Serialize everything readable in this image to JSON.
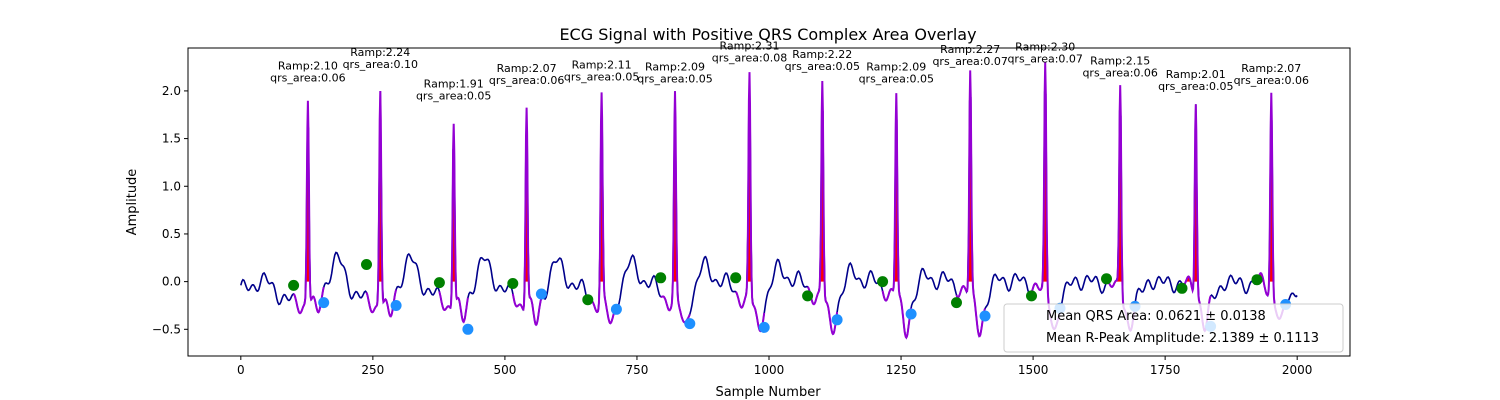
{
  "chart_data": {
    "type": "line",
    "title": "ECG Signal with Positive QRS Complex Area Overlay",
    "xlabel": "Sample Number",
    "ylabel": "Amplitude",
    "xlim": [
      -100,
      2100
    ],
    "ylim": [
      -0.78,
      2.45
    ],
    "xticks": [
      0,
      250,
      500,
      750,
      1000,
      1250,
      1500,
      1750,
      2000
    ],
    "yticks": [
      -0.5,
      0.0,
      0.5,
      1.0,
      1.5,
      2.0
    ],
    "xtick_labels": [
      "0",
      "250",
      "500",
      "750",
      "1000",
      "1250",
      "1500",
      "1750",
      "2000"
    ],
    "ytick_labels": [
      "−0.5",
      "0.0",
      "0.5",
      "1.0",
      "1.5",
      "2.0"
    ],
    "grid": false,
    "legend_position": "lower-right",
    "legend": [
      "Mean QRS Area: 0.0621 ± 0.0138",
      "Mean R-Peak Amplitude: 2.1389 ± 0.1113"
    ],
    "colors": {
      "signal": "#00008b",
      "qrs_segment": "#9400d3",
      "qrs_fill": "#ff0000",
      "onset_marker": "#008000",
      "offset_marker": "#1e90ff"
    },
    "beats": [
      {
        "r": 127,
        "ramp": 2.1,
        "area": 0.06,
        "onset": [
          100,
          -0.04
        ],
        "offset": [
          157,
          -0.22
        ],
        "ramp_label": "Ramp:2.10",
        "area_label": "qrs_area:0.06"
      },
      {
        "r": 264,
        "ramp": 2.24,
        "area": 0.1,
        "onset": [
          238,
          0.18
        ],
        "offset": [
          294,
          -0.25
        ],
        "ramp_label": "Ramp:2.24",
        "area_label": "qrs_area:0.10"
      },
      {
        "r": 403,
        "ramp": 1.91,
        "area": 0.05,
        "onset": [
          376,
          -0.01
        ],
        "offset": [
          430,
          -0.5
        ],
        "ramp_label": "Ramp:1.91",
        "area_label": "qrs_area:0.05"
      },
      {
        "r": 541,
        "ramp": 2.07,
        "area": 0.06,
        "onset": [
          515,
          -0.02
        ],
        "offset": [
          569,
          -0.13
        ],
        "ramp_label": "Ramp:2.07",
        "area_label": "qrs_area:0.06"
      },
      {
        "r": 683,
        "ramp": 2.11,
        "area": 0.05,
        "onset": [
          657,
          -0.19
        ],
        "offset": [
          711,
          -0.29
        ],
        "ramp_label": "Ramp:2.11",
        "area_label": "qrs_area:0.05"
      },
      {
        "r": 822,
        "ramp": 2.09,
        "area": 0.05,
        "onset": [
          795,
          0.04
        ],
        "offset": [
          850,
          -0.44
        ],
        "ramp_label": "Ramp:2.09",
        "area_label": "qrs_area:0.05"
      },
      {
        "r": 963,
        "ramp": 2.31,
        "area": 0.08,
        "onset": [
          937,
          0.04
        ],
        "offset": [
          991,
          -0.48
        ],
        "ramp_label": "Ramp:2.31",
        "area_label": "qrs_area:0.08"
      },
      {
        "r": 1101,
        "ramp": 2.22,
        "area": 0.05,
        "onset": [
          1073,
          -0.15
        ],
        "offset": [
          1129,
          -0.4
        ],
        "ramp_label": "Ramp:2.22",
        "area_label": "qrs_area:0.05"
      },
      {
        "r": 1241,
        "ramp": 2.09,
        "area": 0.05,
        "onset": [
          1215,
          0.0
        ],
        "offset": [
          1269,
          -0.34
        ],
        "ramp_label": "Ramp:2.09",
        "area_label": "qrs_area:0.05"
      },
      {
        "r": 1381,
        "ramp": 2.27,
        "area": 0.07,
        "onset": [
          1355,
          -0.22
        ],
        "offset": [
          1409,
          -0.36
        ],
        "ramp_label": "Ramp:2.27",
        "area_label": "qrs_area:0.07"
      },
      {
        "r": 1523,
        "ramp": 2.3,
        "area": 0.07,
        "onset": [
          1497,
          -0.15
        ],
        "offset": [
          1551,
          -0.28
        ],
        "ramp_label": "Ramp:2.30",
        "area_label": "qrs_area:0.07"
      },
      {
        "r": 1665,
        "ramp": 2.15,
        "area": 0.06,
        "onset": [
          1639,
          0.03
        ],
        "offset": [
          1693,
          -0.26
        ],
        "ramp_label": "Ramp:2.15",
        "area_label": "qrs_area:0.06"
      },
      {
        "r": 1808,
        "ramp": 2.01,
        "area": 0.05,
        "onset": [
          1782,
          -0.07
        ],
        "offset": [
          1836,
          -0.47
        ],
        "ramp_label": "Ramp:2.01",
        "area_label": "qrs_area:0.05"
      },
      {
        "r": 1951,
        "ramp": 2.07,
        "area": 0.06,
        "onset": [
          1924,
          0.02
        ],
        "offset": [
          1978,
          -0.24
        ],
        "ramp_label": "Ramp:2.07",
        "area_label": "qrs_area:0.06"
      }
    ]
  }
}
